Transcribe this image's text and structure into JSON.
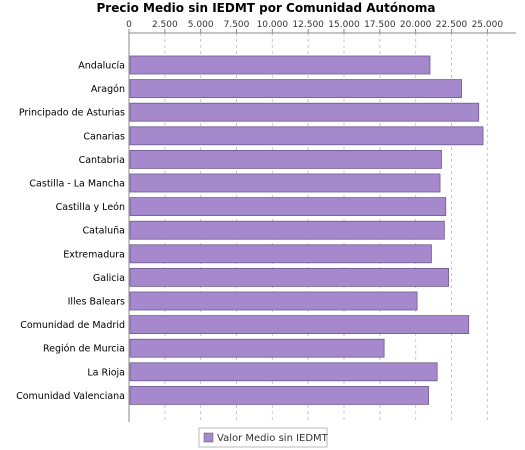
{
  "chart_data": {
    "type": "bar",
    "orientation": "horizontal",
    "title": "Precio Medio sin IEDMT por Comunidad Autónoma",
    "xlim": [
      0,
      27000
    ],
    "tick_values": [
      0,
      2500,
      5000,
      7500,
      10000,
      12500,
      15000,
      17500,
      20000,
      22500,
      25000
    ],
    "tick_labels": [
      "0",
      "2.500",
      "5.000",
      "7.500",
      "10.000",
      "12.500",
      "15.000",
      "17.500",
      "20.000",
      "22.500",
      "25.000"
    ],
    "tick_position": "top",
    "grid": true,
    "legend_position": "bottom-center",
    "categories": [
      "Andalucía",
      "Aragón",
      "Principado de Asturias",
      "Canarias",
      "Cantabria",
      "Castilla - La Mancha",
      "Castilla y León",
      "Cataluña",
      "Extremadura",
      "Galicia",
      "Illes Balears",
      "Comunidad de Madrid",
      "Región de Murcia",
      "La Rioja",
      "Comunidad Valenciana"
    ],
    "series": [
      {
        "name": "Valor Medio sin IEDMT",
        "color": "#a688cc",
        "values": [
          21000,
          23200,
          24400,
          24700,
          21800,
          21700,
          22100,
          22000,
          21100,
          22300,
          20100,
          23700,
          17800,
          21500,
          20900
        ]
      }
    ]
  }
}
